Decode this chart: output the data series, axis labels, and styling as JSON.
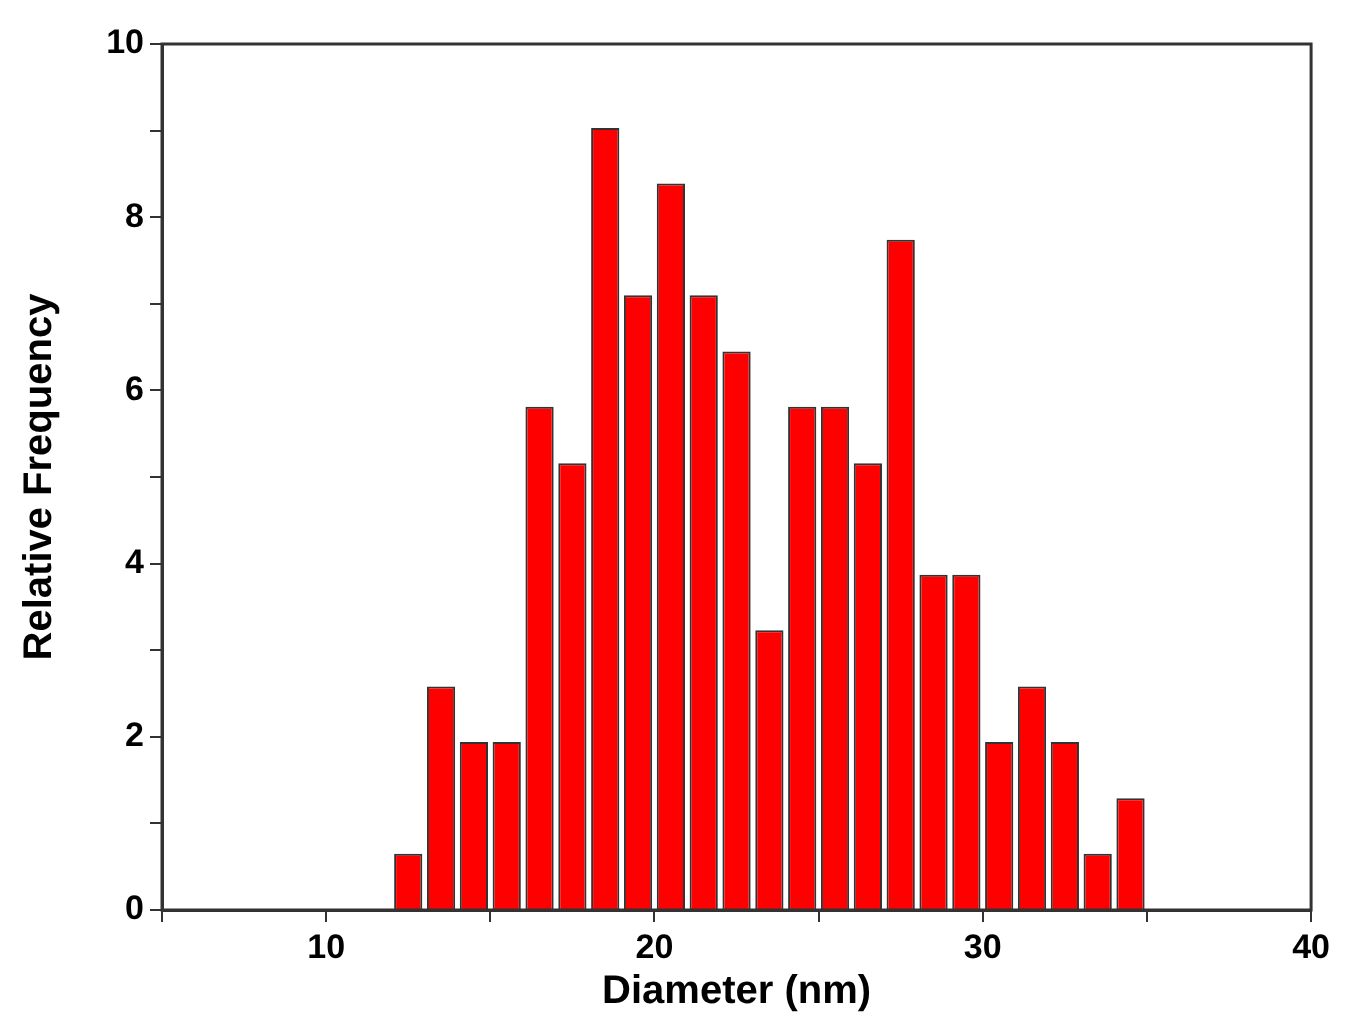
{
  "chart_data": {
    "type": "histogram",
    "xlabel": "Diameter (nm)",
    "ylabel": "Relative Frequency",
    "bins": [
      12,
      13,
      14,
      15,
      16,
      17,
      18,
      19,
      20,
      21,
      22,
      23,
      24,
      25,
      26,
      27,
      28,
      29,
      30,
      31,
      32,
      33,
      34,
      35
    ],
    "values": [
      0.65,
      2.58,
      1.94,
      1.94,
      5.81,
      5.16,
      9.03,
      7.1,
      8.39,
      7.1,
      6.45,
      3.23,
      5.81,
      5.81,
      5.16,
      7.74,
      3.87,
      3.87,
      1.94,
      2.58,
      1.94,
      0.65,
      1.29
    ],
    "color": "#ff0000",
    "xlim": [
      5,
      40
    ],
    "xticks": [
      {
        "value": 5,
        "label": null
      },
      10,
      {
        "value": 15,
        "label": null
      },
      20,
      {
        "value": 25,
        "label": null
      },
      30,
      {
        "value": 35,
        "label": null
      },
      40
    ],
    "ylim": [
      0,
      10
    ],
    "yticks": [
      0,
      {
        "value": 1,
        "label": null
      },
      2,
      {
        "value": 3,
        "label": null
      },
      4,
      {
        "value": 5,
        "label": null
      },
      6,
      {
        "value": 7,
        "label": null
      },
      8,
      {
        "value": 9,
        "label": null
      },
      10
    ]
  }
}
